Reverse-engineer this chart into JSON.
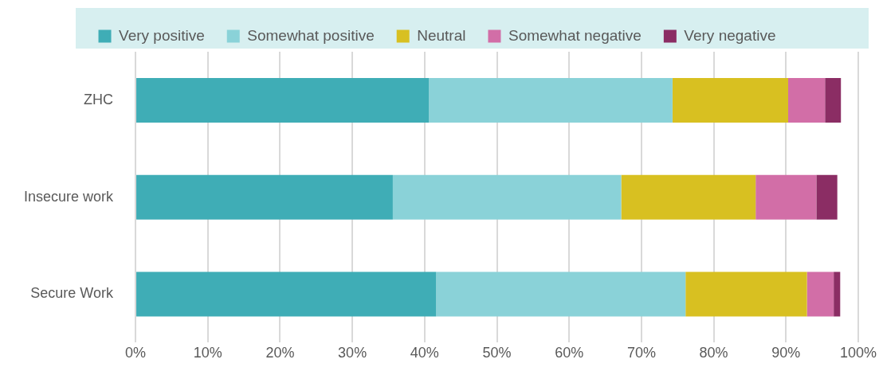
{
  "chart_data": {
    "type": "bar",
    "orientation": "horizontal",
    "stacked": true,
    "categories": [
      "ZHC",
      "Insecure work",
      "Secure Work"
    ],
    "series": [
      {
        "name": "Very positive",
        "color": "#3fadb6",
        "values": [
          40.6,
          35.6,
          41.6
        ]
      },
      {
        "name": "Somewhat positive",
        "color": "#8ad2d8",
        "values": [
          33.7,
          31.6,
          34.5
        ]
      },
      {
        "name": "Neutral",
        "color": "#d8c021",
        "values": [
          16.0,
          18.6,
          16.8
        ]
      },
      {
        "name": "Somewhat negative",
        "color": "#d26ea7",
        "values": [
          5.1,
          8.4,
          3.7
        ]
      },
      {
        "name": "Very negative",
        "color": "#8b2d64",
        "values": [
          2.2,
          2.9,
          0.9
        ]
      }
    ],
    "xlim": [
      0,
      100
    ],
    "xticks": [
      {
        "value": 0,
        "label": "0%"
      },
      {
        "value": 10,
        "label": "10%"
      },
      {
        "value": 20,
        "label": "20%"
      },
      {
        "value": 30,
        "label": "30%"
      },
      {
        "value": 40,
        "label": "40%"
      },
      {
        "value": 50,
        "label": "50%"
      },
      {
        "value": 60,
        "label": "60%"
      },
      {
        "value": 70,
        "label": "70%"
      },
      {
        "value": 80,
        "label": "80%"
      },
      {
        "value": 90,
        "label": "90%"
      },
      {
        "value": 100,
        "label": "100%"
      }
    ],
    "grid": "x",
    "legend": "top"
  }
}
